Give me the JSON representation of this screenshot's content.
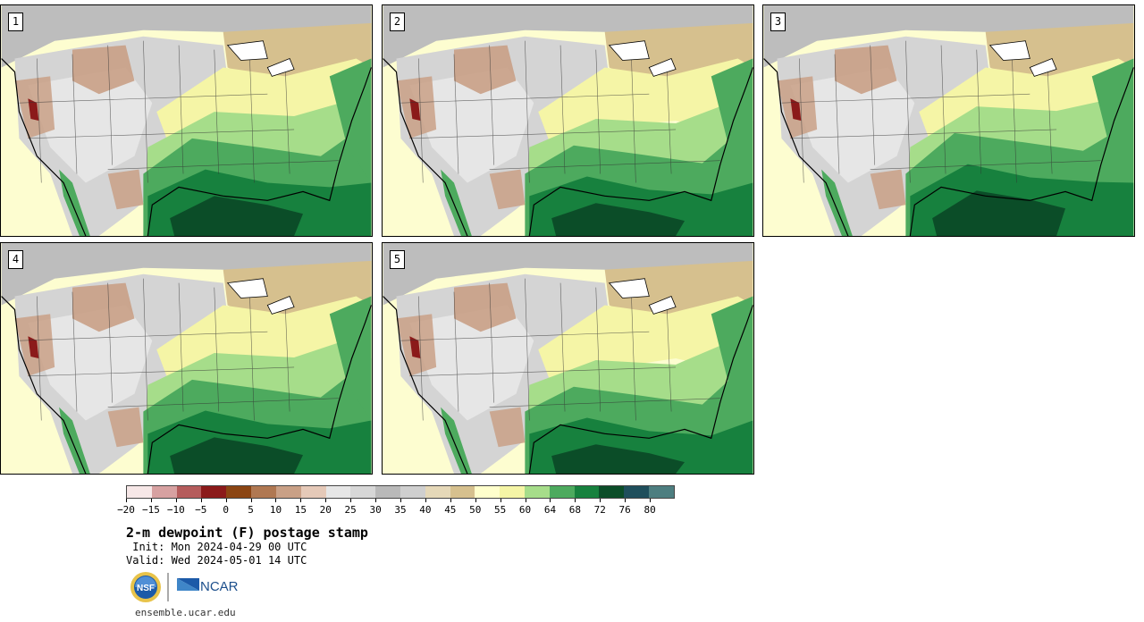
{
  "panels": [
    {
      "label": "1"
    },
    {
      "label": "2"
    },
    {
      "label": "3"
    },
    {
      "label": "4"
    },
    {
      "label": "5"
    }
  ],
  "colorbar": {
    "colors": [
      "#f6e7e7",
      "#d7a1a1",
      "#b55c5c",
      "#8b1a1a",
      "#8b4513",
      "#b07852",
      "#c9a086",
      "#e5c9b8",
      "#e6e6e6",
      "#d7d7d7",
      "#b9b9b9",
      "#cfcfcf",
      "#e5d8b8",
      "#d6c08e",
      "#ffffcc",
      "#f5f5a6",
      "#a6dd8a",
      "#4daa5e",
      "#17813e",
      "#0b4d28",
      "#1f4f5c",
      "#4d7e80"
    ],
    "tick_labels": [
      "−20",
      "−15",
      "−10",
      "−5",
      "0",
      "5",
      "10",
      "15",
      "20",
      "25",
      "30",
      "35",
      "40",
      "45",
      "50",
      "55",
      "60",
      "64",
      "68",
      "72",
      "76",
      "80"
    ]
  },
  "title": "2-m dewpoint (F) postage stamp",
  "init_text": " Init: Mon 2024-04-29 00 UTC",
  "valid_text": "Valid: Wed 2024-05-01 14 UTC",
  "logos": {
    "nsf": "NSF",
    "ncar": "NCAR"
  },
  "url": "ensemble.ucar.edu"
}
